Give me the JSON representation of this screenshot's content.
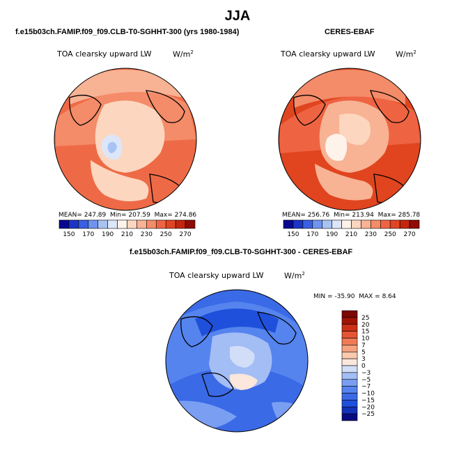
{
  "page_title": "JJA",
  "panels": [
    {
      "title": "f.e15b03ch.FAMIP.f09_f09.CLB-T0-SGHHT-300 (yrs 1980-1984)",
      "variable": "TOA clearsky upward LW",
      "units": "W/m",
      "units_exp": "2",
      "stats": {
        "mean_label": "MEAN=",
        "mean": "247.89",
        "min_label": "Min=",
        "min": "207.59",
        "max_label": "Max=",
        "max": "274.86"
      }
    },
    {
      "title": "CERES-EBAF",
      "variable": "TOA clearsky upward LW",
      "units": "W/m",
      "units_exp": "2",
      "stats": {
        "mean_label": "MEAN=",
        "mean": "256.76",
        "min_label": "Min=",
        "min": "213.94",
        "max_label": "Max=",
        "max": "285.78"
      }
    },
    {
      "title": "f.e15b03ch.FAMIP.f09_f09.CLB-T0-SGHHT-300 - CERES-EBAF",
      "variable": "TOA clearsky upward LW",
      "units": "W/m",
      "units_exp": "2",
      "stats": {
        "min_label": "MIN =",
        "min": "-35.90",
        "max_label": "MAX =",
        "max": "8.64"
      }
    }
  ],
  "chart_data": [
    {
      "type": "heatmap",
      "projection": "polar-stereographic-north",
      "title": "TOA clearsky upward LW",
      "units": "W/m2",
      "colorbar": {
        "orientation": "horizontal",
        "levels": [
          150,
          170,
          190,
          210,
          230,
          250,
          270,
          290
        ],
        "colors": [
          "#08088f",
          "#1c34c4",
          "#3a5fe0",
          "#6f93ee",
          "#a8c2f4",
          "#dce6f8",
          "#fdf3ea",
          "#fcd6bf",
          "#f8b294",
          "#f48b69",
          "#ee6442",
          "#e04524",
          "#c2260e",
          "#8f0c04"
        ]
      },
      "mean": 247.89,
      "min": 207.59,
      "max": 274.86
    },
    {
      "type": "heatmap",
      "projection": "polar-stereographic-north",
      "title": "TOA clearsky upward LW",
      "units": "W/m2",
      "colorbar": {
        "orientation": "horizontal",
        "levels": [
          150,
          170,
          190,
          210,
          230,
          250,
          270,
          290
        ],
        "colors": [
          "#08088f",
          "#1c34c4",
          "#3a5fe0",
          "#6f93ee",
          "#a8c2f4",
          "#dce6f8",
          "#fdf3ea",
          "#fcd6bf",
          "#f8b294",
          "#f48b69",
          "#ee6442",
          "#e04524",
          "#c2260e",
          "#8f0c04"
        ]
      },
      "mean": 256.76,
      "min": 213.94,
      "max": 285.78
    },
    {
      "type": "heatmap",
      "projection": "polar-stereographic-north",
      "title": "TOA clearsky upward LW",
      "units": "W/m2",
      "colorbar": {
        "orientation": "vertical",
        "levels": [
          -25,
          -20,
          -15,
          -10,
          -7,
          -5,
          -3,
          0,
          3,
          5,
          7,
          10,
          15,
          20,
          25
        ],
        "level_labels": [
          "25",
          "20",
          "15",
          "10",
          "7",
          "5",
          "3",
          "0",
          "−3",
          "−5",
          "−7",
          "−10",
          "−15",
          "−20",
          "−25"
        ],
        "colors": [
          "#0a0a80",
          "#1230b8",
          "#1f50dc",
          "#3a6ae6",
          "#5584ee",
          "#7a9ff2",
          "#a3bdf5",
          "#d2def8",
          "#fbe7dc",
          "#f9c8ad",
          "#f5a27f",
          "#ef7a55",
          "#e65534",
          "#cc3116",
          "#a01406",
          "#7a0804"
        ]
      },
      "min": -35.9,
      "max": 8.64
    }
  ]
}
